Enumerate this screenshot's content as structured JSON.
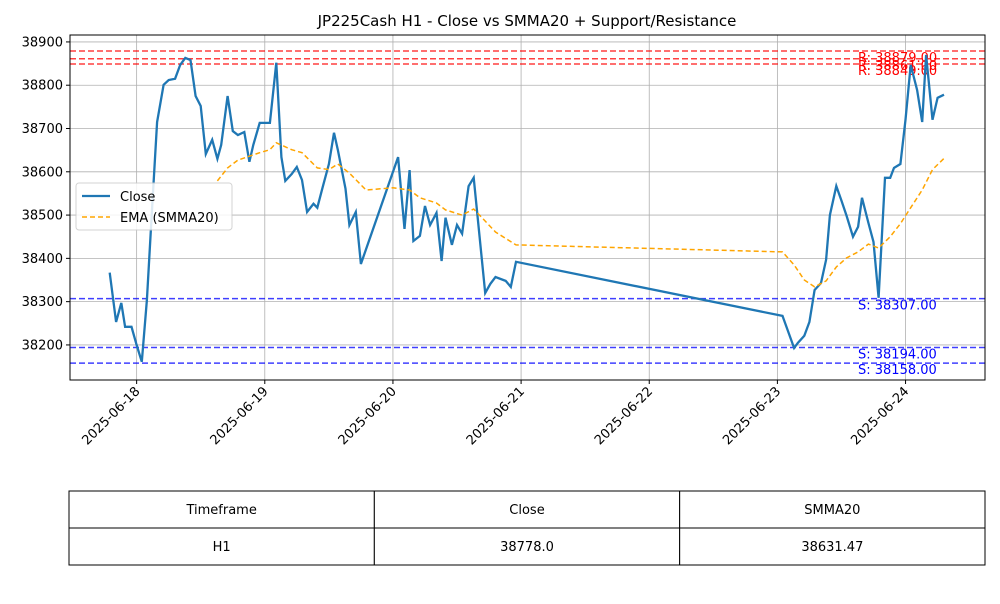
{
  "chart_data": {
    "type": "line",
    "title": "JP225Cash H1 - Close vs SMMA20 + Support/Resistance",
    "xlim": [
      17.48,
      24.62
    ],
    "xticks": [
      {
        "value": 18,
        "label": "2025-06-18"
      },
      {
        "value": 19,
        "label": "2025-06-19"
      },
      {
        "value": 20,
        "label": "2025-06-20"
      },
      {
        "value": 21,
        "label": "2025-06-21"
      },
      {
        "value": 22,
        "label": "2025-06-22"
      },
      {
        "value": 23,
        "label": "2025-06-23"
      },
      {
        "value": 24,
        "label": "2025-06-24"
      }
    ],
    "ylim": [
      38119,
      38916
    ],
    "yticks": [
      38200,
      38300,
      38400,
      38500,
      38600,
      38700,
      38800,
      38900
    ],
    "grid": true,
    "legend": "center left",
    "series": [
      {
        "name": "Close",
        "color": "#1f77b4",
        "dash": false,
        "x": [
          17.79,
          17.84,
          17.88,
          17.91,
          17.96,
          18.0,
          18.04,
          18.08,
          18.12,
          18.16,
          18.21,
          18.25,
          18.3,
          18.34,
          18.38,
          18.42,
          18.46,
          18.5,
          18.54,
          18.59,
          18.63,
          18.66,
          18.71,
          18.75,
          18.79,
          18.84,
          18.88,
          18.91,
          18.96,
          19.0,
          19.04,
          19.09,
          19.13,
          19.16,
          19.21,
          19.25,
          19.29,
          19.33,
          19.38,
          19.41,
          19.45,
          19.5,
          19.54,
          19.57,
          19.63,
          19.66,
          19.71,
          19.75,
          20.04,
          20.09,
          20.13,
          20.16,
          20.21,
          20.25,
          20.29,
          20.34,
          20.38,
          20.41,
          20.46,
          20.5,
          20.54,
          20.59,
          20.63,
          20.72,
          20.76,
          20.8,
          20.88,
          20.92,
          20.96,
          23.04,
          23.13,
          23.16,
          23.21,
          23.25,
          23.29,
          23.34,
          23.38,
          23.41,
          23.46,
          23.5,
          23.54,
          23.59,
          23.63,
          23.66,
          23.71,
          23.75,
          23.79,
          23.84,
          23.88,
          23.91,
          23.96,
          24.0,
          24.04,
          24.09,
          24.13,
          24.16,
          24.21,
          24.25,
          24.3
        ],
        "values": [
          38367,
          38253,
          38297,
          38242,
          38242,
          38200,
          38161,
          38304,
          38512,
          38715,
          38801,
          38812,
          38815,
          38847,
          38863,
          38858,
          38775,
          38752,
          38641,
          38674,
          38630,
          38662,
          38775,
          38694,
          38685,
          38692,
          38623,
          38662,
          38713,
          38713,
          38713,
          38852,
          38634,
          38579,
          38595,
          38611,
          38581,
          38507,
          38526,
          38517,
          38563,
          38618,
          38690,
          38651,
          38561,
          38477,
          38507,
          38387,
          38634,
          38468,
          38604,
          38440,
          38452,
          38521,
          38477,
          38505,
          38394,
          38494,
          38431,
          38477,
          38457,
          38567,
          38586,
          38320,
          38341,
          38357,
          38348,
          38334,
          38392,
          38267,
          38193,
          38205,
          38221,
          38253,
          38327,
          38343,
          38397,
          38500,
          38567,
          38533,
          38498,
          38450,
          38473,
          38540,
          38482,
          38438,
          38309,
          38586,
          38586,
          38609,
          38618,
          38720,
          38847,
          38789,
          38715,
          38870,
          38720,
          38771,
          38778
        ]
      },
      {
        "name": "EMA (SMMA20)",
        "color": "orange",
        "dash": true,
        "x": [
          18.63,
          18.71,
          18.79,
          18.96,
          19.04,
          19.09,
          19.21,
          19.29,
          19.41,
          19.5,
          19.57,
          19.66,
          19.79,
          20.0,
          20.13,
          20.21,
          20.34,
          20.41,
          20.54,
          20.63,
          20.8,
          20.96,
          23.04,
          23.13,
          23.21,
          23.29,
          23.38,
          23.46,
          23.54,
          23.63,
          23.71,
          23.79,
          23.88,
          23.96,
          24.04,
          24.13,
          24.21,
          24.3
        ],
        "values": [
          38579,
          38609,
          38627,
          38644,
          38651,
          38667,
          38651,
          38644,
          38609,
          38605,
          38618,
          38597,
          38558,
          38563,
          38558,
          38540,
          38528,
          38512,
          38500,
          38514,
          38461,
          38431,
          38415,
          38385,
          38350,
          38334,
          38348,
          38380,
          38401,
          38415,
          38433,
          38424,
          38450,
          38480,
          38517,
          38558,
          38605,
          38631
        ]
      }
    ],
    "hlines": [
      {
        "value": 38879,
        "label": "R: 38879.00",
        "color": "red"
      },
      {
        "value": 38861,
        "label": "R: 38861.00",
        "color": "red"
      },
      {
        "value": 38849,
        "label": "R: 38849.00",
        "color": "red"
      },
      {
        "value": 38307,
        "label": "S: 38307.00",
        "color": "blue"
      },
      {
        "value": 38194,
        "label": "S: 38194.00",
        "color": "blue"
      },
      {
        "value": 38158,
        "label": "S: 38158.00",
        "color": "blue"
      }
    ]
  },
  "table": {
    "header": [
      "Timeframe",
      "Close",
      "SMMA20"
    ],
    "rows": [
      [
        "H1",
        "38778.0",
        "38631.47"
      ]
    ]
  }
}
